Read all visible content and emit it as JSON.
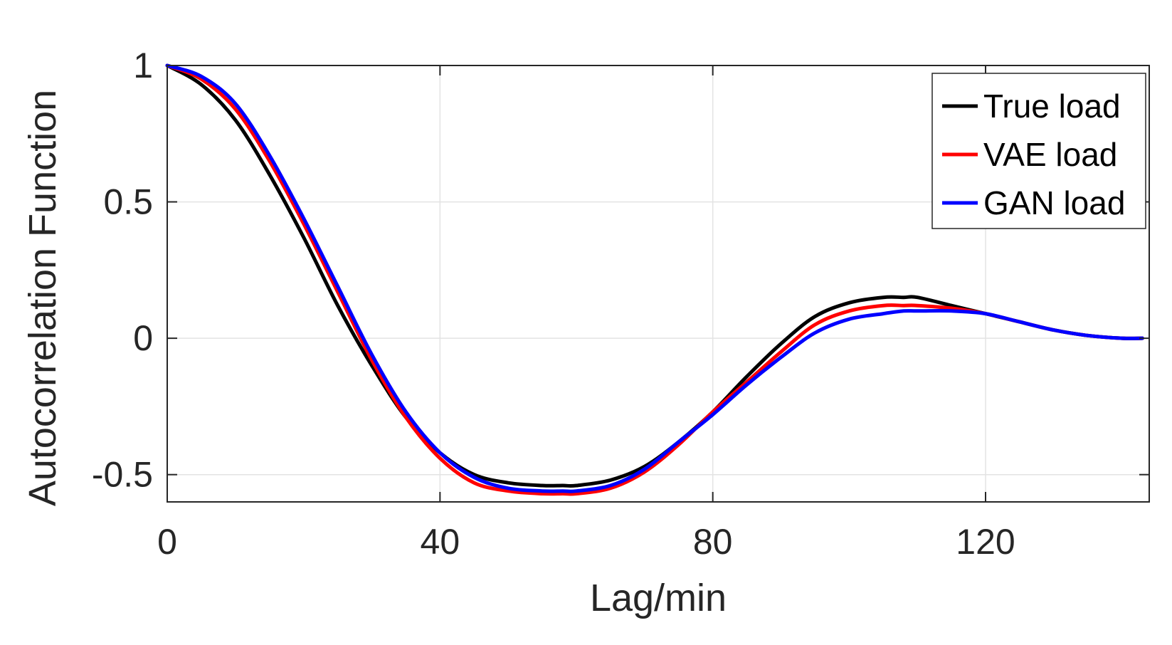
{
  "chart_data": {
    "type": "line",
    "xlabel": "Lag/min",
    "ylabel": "Autocorrelation Function",
    "xlim": [
      0,
      144
    ],
    "ylim": [
      -0.6,
      1
    ],
    "xticks": [
      0,
      40,
      80,
      120
    ],
    "xtick_labels": [
      "0",
      "40",
      "80",
      "120"
    ],
    "yticks": [
      -0.5,
      0,
      0.5,
      1
    ],
    "ytick_labels": [
      "-0.5",
      "0",
      "0.5",
      "1"
    ],
    "grid": true,
    "legend_position": "top-right",
    "x": [
      0,
      5,
      10,
      15,
      20,
      25,
      30,
      35,
      40,
      45,
      50,
      55,
      58,
      60,
      65,
      70,
      75,
      80,
      85,
      90,
      95,
      100,
      105,
      108,
      110,
      115,
      120,
      125,
      130,
      135,
      140,
      143
    ],
    "series": [
      {
        "name": "True load",
        "color": "#000000",
        "values": [
          1.0,
          0.93,
          0.8,
          0.6,
          0.37,
          0.12,
          -0.1,
          -0.29,
          -0.42,
          -0.5,
          -0.53,
          -0.54,
          -0.54,
          -0.54,
          -0.52,
          -0.47,
          -0.38,
          -0.27,
          -0.14,
          -0.02,
          0.08,
          0.13,
          0.15,
          0.15,
          0.15,
          0.12,
          0.09,
          0.06,
          0.03,
          0.01,
          0.0,
          0.0
        ]
      },
      {
        "name": "VAE load",
        "color": "#ff0000",
        "values": [
          1.0,
          0.95,
          0.84,
          0.65,
          0.42,
          0.17,
          -0.08,
          -0.29,
          -0.44,
          -0.53,
          -0.56,
          -0.57,
          -0.57,
          -0.57,
          -0.55,
          -0.49,
          -0.39,
          -0.27,
          -0.16,
          -0.05,
          0.05,
          0.1,
          0.12,
          0.12,
          0.12,
          0.11,
          0.09,
          0.06,
          0.03,
          0.01,
          0.0,
          0.0
        ]
      },
      {
        "name": "GAN load",
        "color": "#0000ff",
        "values": [
          1.0,
          0.96,
          0.86,
          0.67,
          0.44,
          0.19,
          -0.06,
          -0.27,
          -0.42,
          -0.51,
          -0.55,
          -0.56,
          -0.56,
          -0.56,
          -0.54,
          -0.48,
          -0.38,
          -0.28,
          -0.17,
          -0.07,
          0.02,
          0.07,
          0.09,
          0.1,
          0.1,
          0.1,
          0.09,
          0.06,
          0.03,
          0.01,
          0.0,
          0.0
        ]
      }
    ]
  }
}
